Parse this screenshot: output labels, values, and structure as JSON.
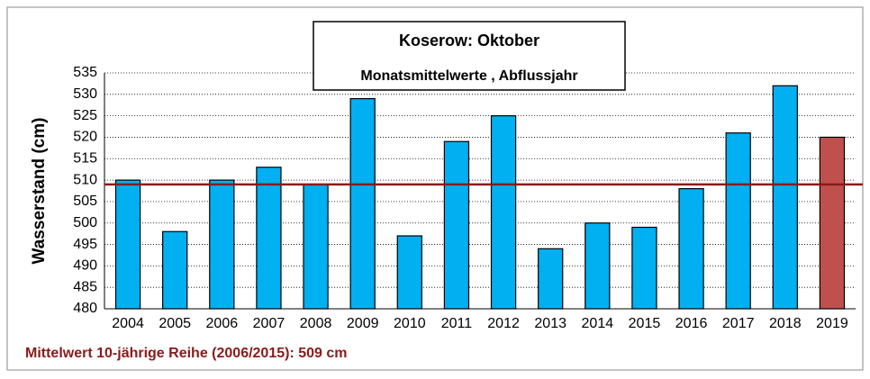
{
  "chart_data": {
    "type": "bar",
    "title": "Koserow: Oktober",
    "subtitle": "Monatsmittelwerte , Abflussjahr",
    "y_label": "Wasserstand (cm)",
    "footnote": "Mittelwert 10-jährige Reihe (2006/2015): 509 cm",
    "categories": [
      "2004",
      "2005",
      "2006",
      "2007",
      "2008",
      "2009",
      "2010",
      "2011",
      "2012",
      "2013",
      "2014",
      "2015",
      "2016",
      "2017",
      "2018",
      "2019"
    ],
    "values": [
      510,
      498,
      510,
      513,
      509,
      529,
      497,
      519,
      525,
      494,
      500,
      499,
      508,
      521,
      532,
      520
    ],
    "colors": [
      "#00b0f0",
      "#00b0f0",
      "#00b0f0",
      "#00b0f0",
      "#00b0f0",
      "#00b0f0",
      "#00b0f0",
      "#00b0f0",
      "#00b0f0",
      "#00b0f0",
      "#00b0f0",
      "#00b0f0",
      "#00b0f0",
      "#00b0f0",
      "#00b0f0",
      "#c0504d"
    ],
    "reference_line": {
      "value": 509,
      "color": "#8b1a1a"
    },
    "ylim": [
      480,
      535
    ],
    "yticks": [
      480,
      485,
      490,
      495,
      500,
      505,
      510,
      515,
      520,
      525,
      530,
      535
    ],
    "grid": true
  }
}
